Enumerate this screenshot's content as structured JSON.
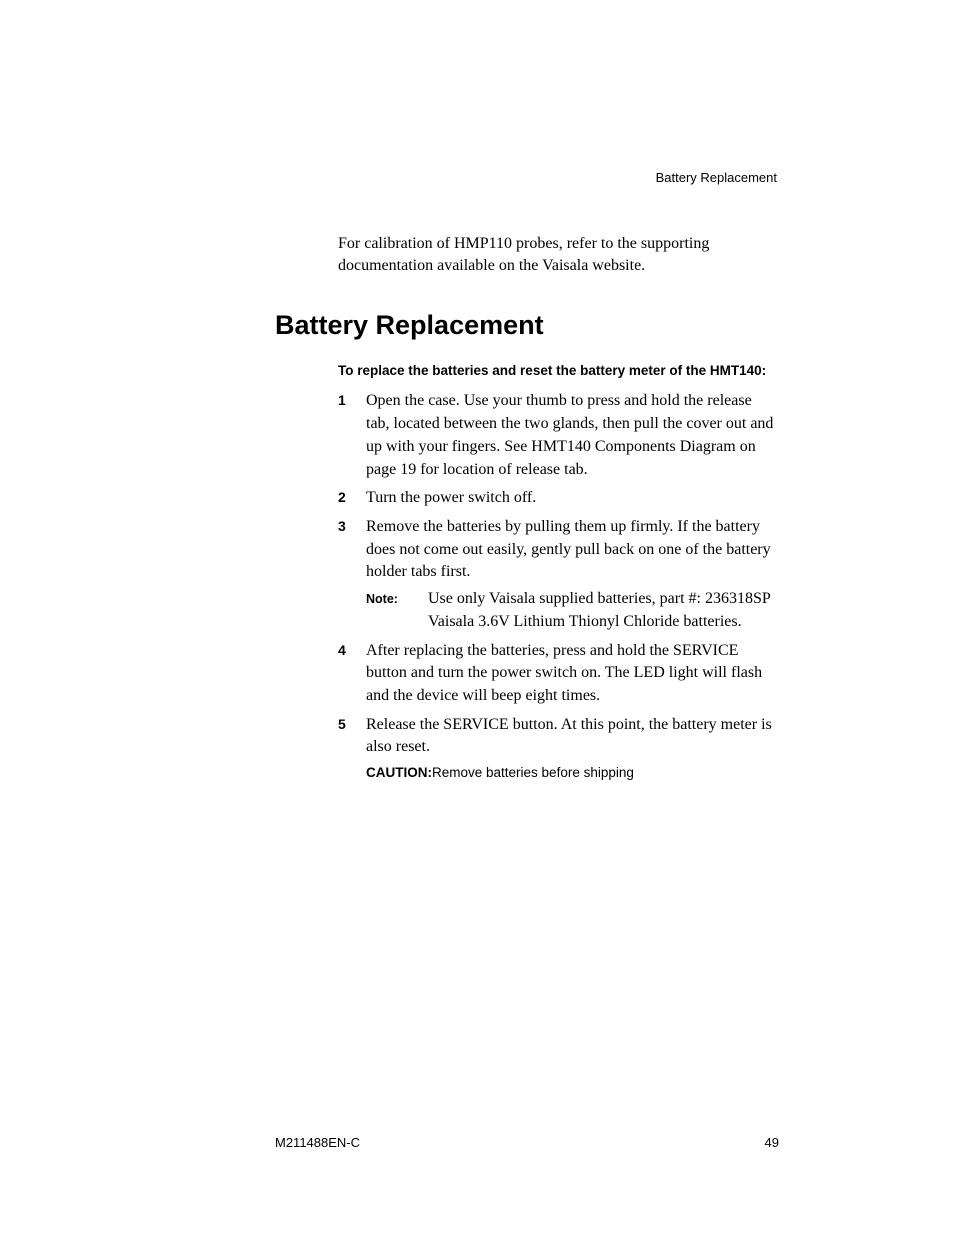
{
  "colors": {
    "background": "#ffffff",
    "text": "#000000"
  },
  "typography": {
    "body_family": "Georgia, 'Times New Roman', serif",
    "sans_family": "Arial, Helvetica, sans-serif",
    "body_size_pt": 12,
    "heading_size_pt": 20,
    "small_sans_pt": 10,
    "footer_size_pt": 10
  },
  "header": {
    "running": "Battery Replacement"
  },
  "intro": "For calibration of HMP110 probes, refer to the supporting documentation available on the Vaisala website.",
  "section": {
    "heading": "Battery Replacement",
    "lead_in": "To replace the batteries and reset the battery meter of the HMT140:",
    "steps": [
      {
        "num": "1",
        "text": "Open the case. Use your thumb to press and hold the release tab, located between the two glands, then pull the cover out and up with your fingers. See HMT140 Components Diagram on page 19 for location of release tab."
      },
      {
        "num": "2",
        "text": "Turn the power switch off."
      },
      {
        "num": "3",
        "text": "Remove the batteries by pulling them up firmly. If the battery does not come out easily, gently pull back on one of the battery holder tabs first.",
        "note": {
          "label": "Note:",
          "text": "Use only Vaisala supplied batteries, part #: 236318SP Vaisala 3.6V Lithium Thionyl Chloride batteries."
        }
      },
      {
        "num": "4",
        "text": "After replacing the batteries, press and hold the SERVICE button and turn the power switch on. The LED light will flash and the device will beep eight times."
      },
      {
        "num": "5",
        "text": "Release the SERVICE button. At this point, the battery meter is also reset.",
        "caution": {
          "label": "CAUTION:",
          "text": "Remove batteries before shipping"
        }
      }
    ]
  },
  "footer": {
    "doc_id": "M211488EN-C",
    "page_num": "49"
  }
}
